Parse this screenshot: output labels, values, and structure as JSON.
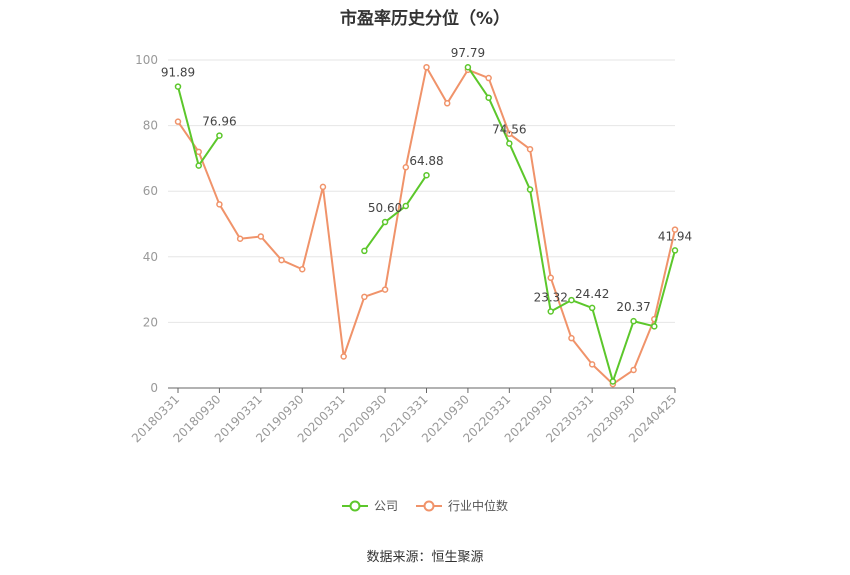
{
  "title": "市盈率历史分位（%）",
  "source": "数据来源：恒生聚源",
  "legend": {
    "company": "公司",
    "industry": "行业中位数"
  },
  "chart_data": {
    "type": "line",
    "title": "市盈率历史分位（%）",
    "ylim": [
      0,
      100
    ],
    "yticks": [
      0,
      20,
      40,
      60,
      80,
      100
    ],
    "grid": true,
    "legend_position": "bottom",
    "x": [
      "20180331",
      "20180630",
      "20180930",
      "20181231",
      "20190331",
      "20190630",
      "20190930",
      "20191231",
      "20200331",
      "20200630",
      "20200930",
      "20201231",
      "20210331",
      "20210630",
      "20210930",
      "20211231",
      "20220331",
      "20220630",
      "20220930",
      "20221231",
      "20230331",
      "20230630",
      "20230930",
      "20231231",
      "20240425"
    ],
    "xtick_labels": [
      "20180331",
      "20180930",
      "20190331",
      "20190930",
      "20200331",
      "20200930",
      "20210331",
      "20210930",
      "20220331",
      "20220930",
      "20230331",
      "20230930",
      "20240425"
    ],
    "series": [
      {
        "name": "公司",
        "color": "#5cc72b",
        "values": [
          91.89,
          67.8,
          76.96,
          null,
          null,
          null,
          null,
          null,
          null,
          41.8,
          50.6,
          55.5,
          64.88,
          null,
          97.79,
          88.5,
          74.56,
          60.5,
          23.32,
          26.8,
          24.42,
          2.0,
          20.37,
          18.8,
          41.94
        ]
      },
      {
        "name": "行业中位数",
        "color": "#f0936a",
        "values": [
          81.2,
          72.0,
          56.0,
          45.5,
          46.2,
          39.0,
          36.2,
          61.3,
          9.6,
          27.8,
          30.0,
          67.3,
          97.8,
          86.8,
          97.0,
          94.5,
          77.5,
          72.8,
          33.6,
          15.2,
          7.2,
          1.2,
          5.5,
          21.0,
          48.3
        ]
      }
    ],
    "annotations": [
      {
        "series": 0,
        "index": 0,
        "text": "91.89"
      },
      {
        "series": 0,
        "index": 2,
        "text": "76.96"
      },
      {
        "series": 0,
        "index": 10,
        "text": "50.60"
      },
      {
        "series": 0,
        "index": 12,
        "text": "64.88"
      },
      {
        "series": 0,
        "index": 14,
        "text": "97.79"
      },
      {
        "series": 0,
        "index": 16,
        "text": "74.56"
      },
      {
        "series": 0,
        "index": 18,
        "text": "23.32"
      },
      {
        "series": 0,
        "index": 20,
        "text": "24.42"
      },
      {
        "series": 0,
        "index": 22,
        "text": "20.37"
      },
      {
        "series": 0,
        "index": 24,
        "text": "41.94"
      }
    ]
  }
}
